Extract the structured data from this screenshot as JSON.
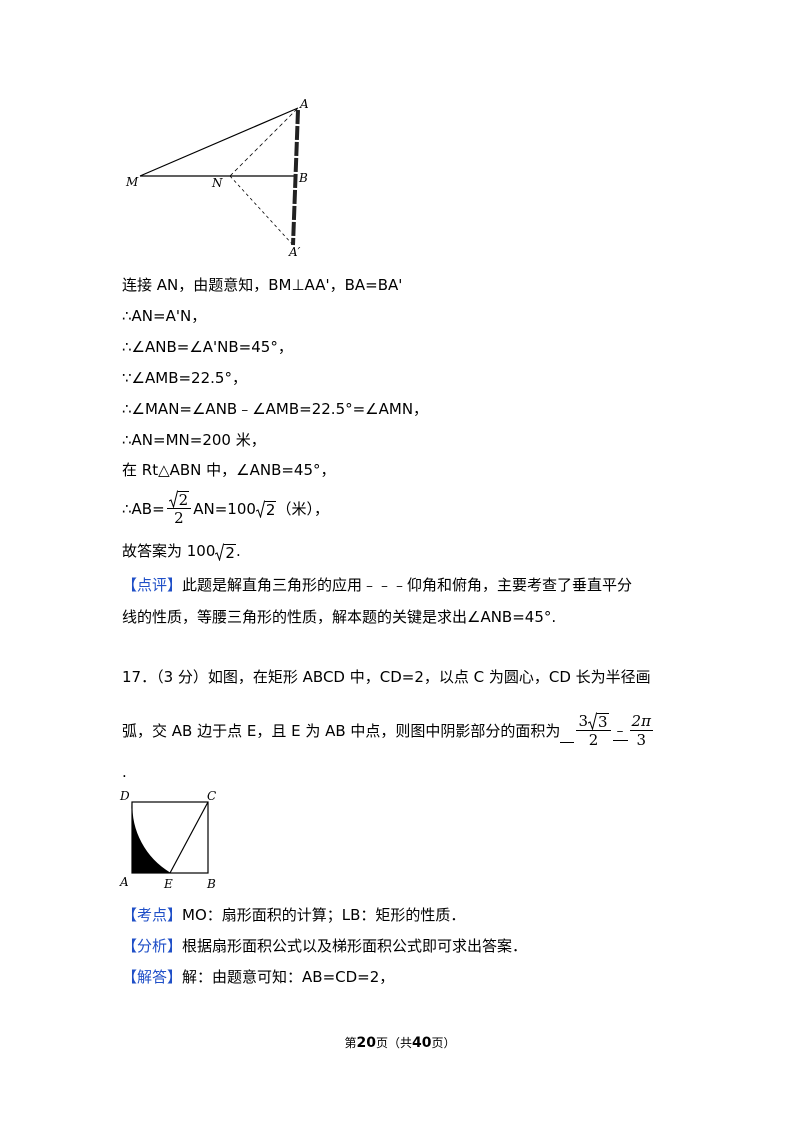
{
  "figure1": {
    "labels": [
      "A",
      "M",
      "N",
      "B",
      "A′"
    ]
  },
  "solution": {
    "lines": [
      "连接 AN，由题意知，BM⊥AA'，BA=BA'",
      "∴AN=A'N，",
      "∴∠ANB=∠A'NB=45°，",
      "∵∠AMB=22.5°，",
      "∴∠MAN=∠ANB﹣∠AMB=22.5°=∠AMN，",
      "∴AN=MN=200 米，",
      "在 Rt△ABN 中，∠ANB=45°，"
    ],
    "ab_line": {
      "prefix": "∴AB=",
      "frac_num": "2",
      "frac_den": "2",
      "middle": "AN=100",
      "radicand": "2",
      "suffix": "（米），"
    },
    "answer_line": {
      "prefix": "故答案为 100",
      "radicand": "2",
      "suffix": "."
    }
  },
  "comment": {
    "tag": "【点评】",
    "lines": [
      "此题是解直角三角形的应用﹣﹣﹣仰角和俯角，主要考查了垂直平分",
      "线的性质，等腰三角形的性质，解本题的关键是求出∠ANB=45°."
    ]
  },
  "question17": {
    "line1": "17．（3 分）如图，在矩形 ABCD 中，CD=2，以点 C 为圆心，CD 长为半径画",
    "line2": "弧，交 AB 边于点 E，且 E 为 AB 中点，则图中阴影部分的面积为",
    "answer": {
      "frac1_num_coef": "3",
      "frac1_radicand": "3",
      "frac1_den": "2",
      "minus": "﹣",
      "frac2_num": "2π",
      "frac2_den": "3"
    },
    "end": "."
  },
  "figure2": {
    "labels": [
      "D",
      "C",
      "A",
      "E",
      "B"
    ]
  },
  "kaodian": {
    "tag": "【考点】",
    "text": "MO：扇形面积的计算；LB：矩形的性质．"
  },
  "fenxi": {
    "tag": "【分析】",
    "text": "根据扇形面积公式以及梯形面积公式即可求出答案．"
  },
  "jieda": {
    "tag": "【解答】",
    "text": "解：由题意可知：AB=CD=2，"
  },
  "footer": {
    "prefix": "第",
    "page": "20",
    "middle": "页（共",
    "total": "40",
    "suffix": "页）"
  }
}
